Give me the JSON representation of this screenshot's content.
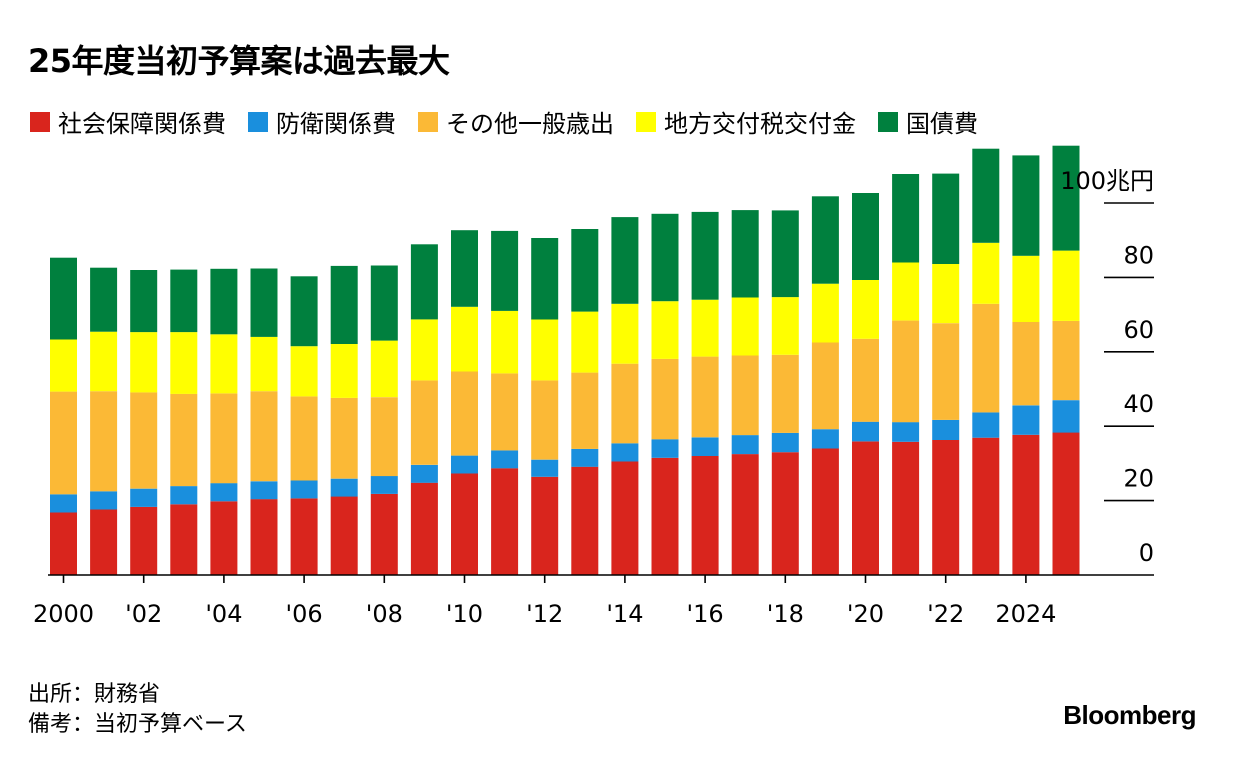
{
  "title": "25年度当初予算案は過去最大",
  "source": "出所：財務省",
  "note": "備考：当初予算ベース",
  "brand": "Bloomberg",
  "chart_data": {
    "type": "bar",
    "stacked": true,
    "title": "25年度当初予算案は過去最大",
    "ylabel": "兆円",
    "ylim": [
      0,
      110
    ],
    "yticks": [
      0,
      20,
      40,
      60,
      80,
      100
    ],
    "ytick_labels": [
      "0",
      "20",
      "40",
      "60",
      "80",
      "100兆円"
    ],
    "grid": false,
    "legend_position": "top",
    "categories": [
      2000,
      2001,
      2002,
      2003,
      2004,
      2005,
      2006,
      2007,
      2008,
      2009,
      2010,
      2011,
      2012,
      2013,
      2014,
      2015,
      2016,
      2017,
      2018,
      2019,
      2020,
      2021,
      2022,
      2023,
      2024,
      2025
    ],
    "xtick_labels": [
      "2000",
      "'02",
      "'04",
      "'06",
      "'08",
      "'10",
      "'12",
      "'14",
      "'16",
      "'18",
      "'20",
      "'22",
      "2024"
    ],
    "xtick_years": [
      2000,
      2002,
      2004,
      2006,
      2008,
      2010,
      2012,
      2014,
      2016,
      2018,
      2020,
      2022,
      2024
    ],
    "series": [
      {
        "name": "社会保障関係費",
        "color": "#d9251d",
        "values": [
          16.8,
          17.6,
          18.3,
          19.0,
          19.8,
          20.4,
          20.6,
          21.1,
          21.8,
          24.8,
          27.3,
          28.7,
          26.4,
          29.1,
          30.5,
          31.5,
          32.0,
          32.5,
          33.0,
          34.0,
          35.9,
          35.8,
          36.3,
          36.9,
          37.7,
          38.3
        ]
      },
      {
        "name": "防衛関係費",
        "color": "#1a8fdd",
        "values": [
          4.9,
          4.9,
          4.9,
          4.9,
          4.9,
          4.8,
          4.8,
          4.8,
          4.8,
          4.8,
          4.8,
          4.8,
          4.6,
          4.8,
          4.9,
          5.0,
          5.0,
          5.1,
          5.2,
          5.2,
          5.3,
          5.3,
          5.4,
          6.8,
          7.9,
          8.7
        ]
      },
      {
        "name": "その他一般歳出",
        "color": "#fbb936",
        "values": [
          27.6,
          26.9,
          25.9,
          24.8,
          24.1,
          24.2,
          22.6,
          21.7,
          21.2,
          22.7,
          22.6,
          20.7,
          21.3,
          20.5,
          21.4,
          21.6,
          21.7,
          21.4,
          21.0,
          23.3,
          22.3,
          27.3,
          26.0,
          29.2,
          22.4,
          21.3
        ]
      },
      {
        "name": "地方交付税交付金",
        "color": "#ffff00",
        "values": [
          14.0,
          16.0,
          16.2,
          16.6,
          15.9,
          14.6,
          13.5,
          14.5,
          15.2,
          16.4,
          17.4,
          16.8,
          16.4,
          16.4,
          16.1,
          15.5,
          15.3,
          15.6,
          15.5,
          15.8,
          15.8,
          15.6,
          15.9,
          16.4,
          17.8,
          18.9
        ]
      },
      {
        "name": "国債費",
        "color": "#00803e",
        "values": [
          22.0,
          17.2,
          16.7,
          16.8,
          17.6,
          18.4,
          18.8,
          21.0,
          20.2,
          20.2,
          20.6,
          21.5,
          21.9,
          22.2,
          23.3,
          23.5,
          23.6,
          23.5,
          23.3,
          23.5,
          23.4,
          23.8,
          24.3,
          25.3,
          27.0,
          28.2
        ]
      }
    ]
  }
}
